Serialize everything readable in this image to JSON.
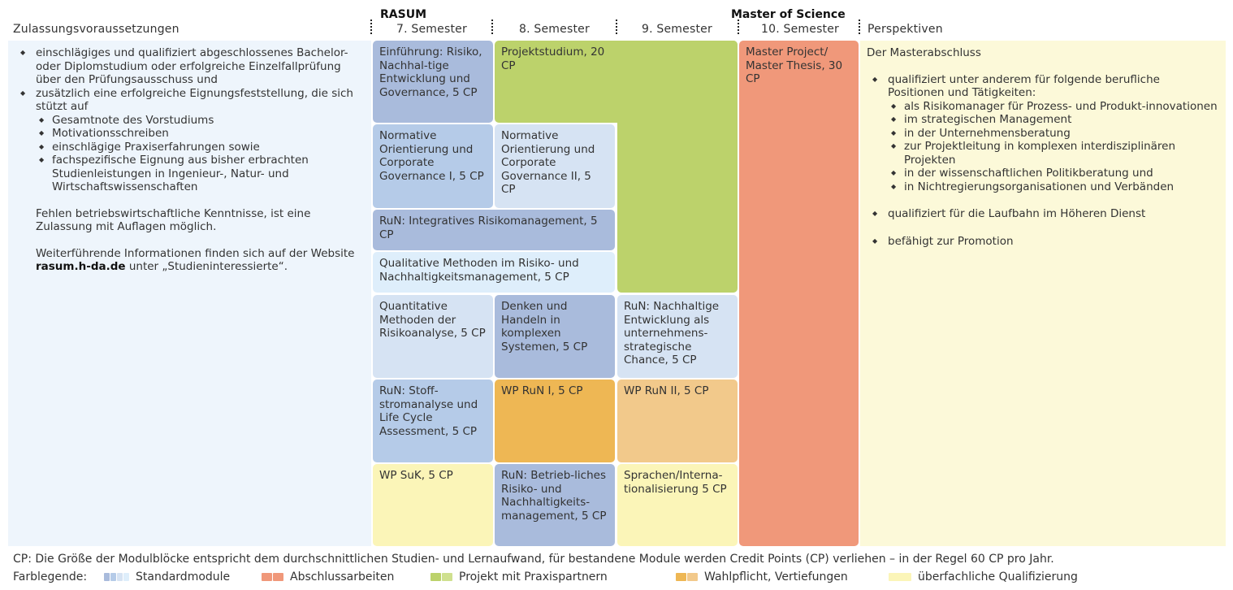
{
  "headers": {
    "left": "Zulassungsvoraussetzungen",
    "rasum": "RASUM",
    "master": "Master of Science",
    "sem7": "7. Semester",
    "sem8": "8. Semester",
    "sem9": "9. Semester",
    "sem10": "10. Semester",
    "right": "Perspektiven"
  },
  "colors": {
    "standard_dark": "#a9bbdc",
    "standard_mid": "#b5cbe8",
    "standard_light": "#d6e3f3",
    "standard_lightest": "#deeefb",
    "abschluss": "#f0987a",
    "projekt": "#bcd26b",
    "wahl_dark": "#eeb754",
    "wahl_light": "#f2c98b",
    "ueberfachlich": "#fbf5b8",
    "left_panel": "#eef5fc",
    "right_panel": "#fcf9d9"
  },
  "left": {
    "items": [
      "einschlägiges und qualifiziert abgeschlossenes Bachelor- oder Diplomstudium oder erfolgreiche Einzelfallprüfung über den Prüfungsausschuss und",
      "zusätzlich eine erfolgreiche Eignungsfeststellung, die sich stützt auf"
    ],
    "subitems": [
      "Gesamtnote des Vorstudiums",
      "Motivationsschreiben",
      "einschlägige Praxiserfahrungen sowie",
      "fachspezifische Eignung aus bisher erbrachten Studienleistungen in Ingenieur-, Natur- und Wirtschaftswissenschaften"
    ],
    "para1": "Fehlen betriebswirtschaftliche Kenntnisse, ist eine Zulassung mit Auflagen möglich.",
    "para2_pre": "Weiterführende Informationen finden sich auf der Website ",
    "para2_link": "rasum.h-da.de",
    "para2_post": " unter „Studieninteressierte“."
  },
  "modules": {
    "einfuehrung": "Einführung: Risiko, Nachhal-tige Entwicklung und Governance, 5 CP",
    "projekt": "Projektstudium, 20 CP",
    "master": "Master Project/ Master Thesis, 30 CP",
    "norm1": "Normative Orientierung und Corporate Governance I, 5 CP",
    "norm2": "Normative Orientierung und Corporate Governance II, 5 CP",
    "run_int": "RuN: Integratives Risikomanagement, 5 CP",
    "qual": "Qualitative Methoden im Risiko- und Nachhaltigkeitsmanagement, 5 CP",
    "quant": "Quantitative Methoden der Risikoanalyse, 5 CP",
    "denken": "Denken und Handeln in komplexen Systemen, 5 CP",
    "run_nach": "RuN: Nachhaltige Entwicklung als unternehmens-strategische Chance, 5 CP",
    "run_stoff": "RuN: Stoff-stromanalyse und Life Cycle Assessment, 5 CP",
    "wp1": "WP RuN I, 5 CP",
    "wp2": "WP RuN II, 5 CP",
    "wpsuk": "WP SuK, 5 CP",
    "run_betr": "RuN: Betrieb-liches Risiko- und Nachhaltigkeits-management, 5 CP",
    "sprachen": "Sprachen/Interna-tionalisierung 5 CP"
  },
  "right": {
    "intro": "Der Masterabschluss",
    "items": [
      "qualifiziert unter anderem für folgende berufliche Positionen und Tätigkeiten:",
      "qualifiziert für die Laufbahn im Höheren Dienst",
      "befähigt zur Promotion"
    ],
    "subitems": [
      "als Risikomanager für Prozess- und Produkt-innovationen",
      "im strategischen Management",
      "in der Unternehmensberatung",
      "zur Projektleitung in komplexen interdisziplinären Projekten",
      "in der wissenschaftlichen Politikberatung und",
      "in Nichtregierungsorganisationen und Verbänden"
    ]
  },
  "footer": {
    "note": "CP: Die Größe der Modulblöcke entspricht dem durchschnittlichen Studien- und Lernaufwand, für bestandene Module werden Credit Points (CP) verliehen – in der Regel 60 CP pro Jahr.",
    "legend_title": "Farblegende:",
    "legend": [
      "Standardmodule",
      "Abschlussarbeiten",
      "Projekt mit Praxispartnern",
      "Wahlpflicht, Vertiefungen",
      "überfachliche Qualifizierung"
    ]
  }
}
